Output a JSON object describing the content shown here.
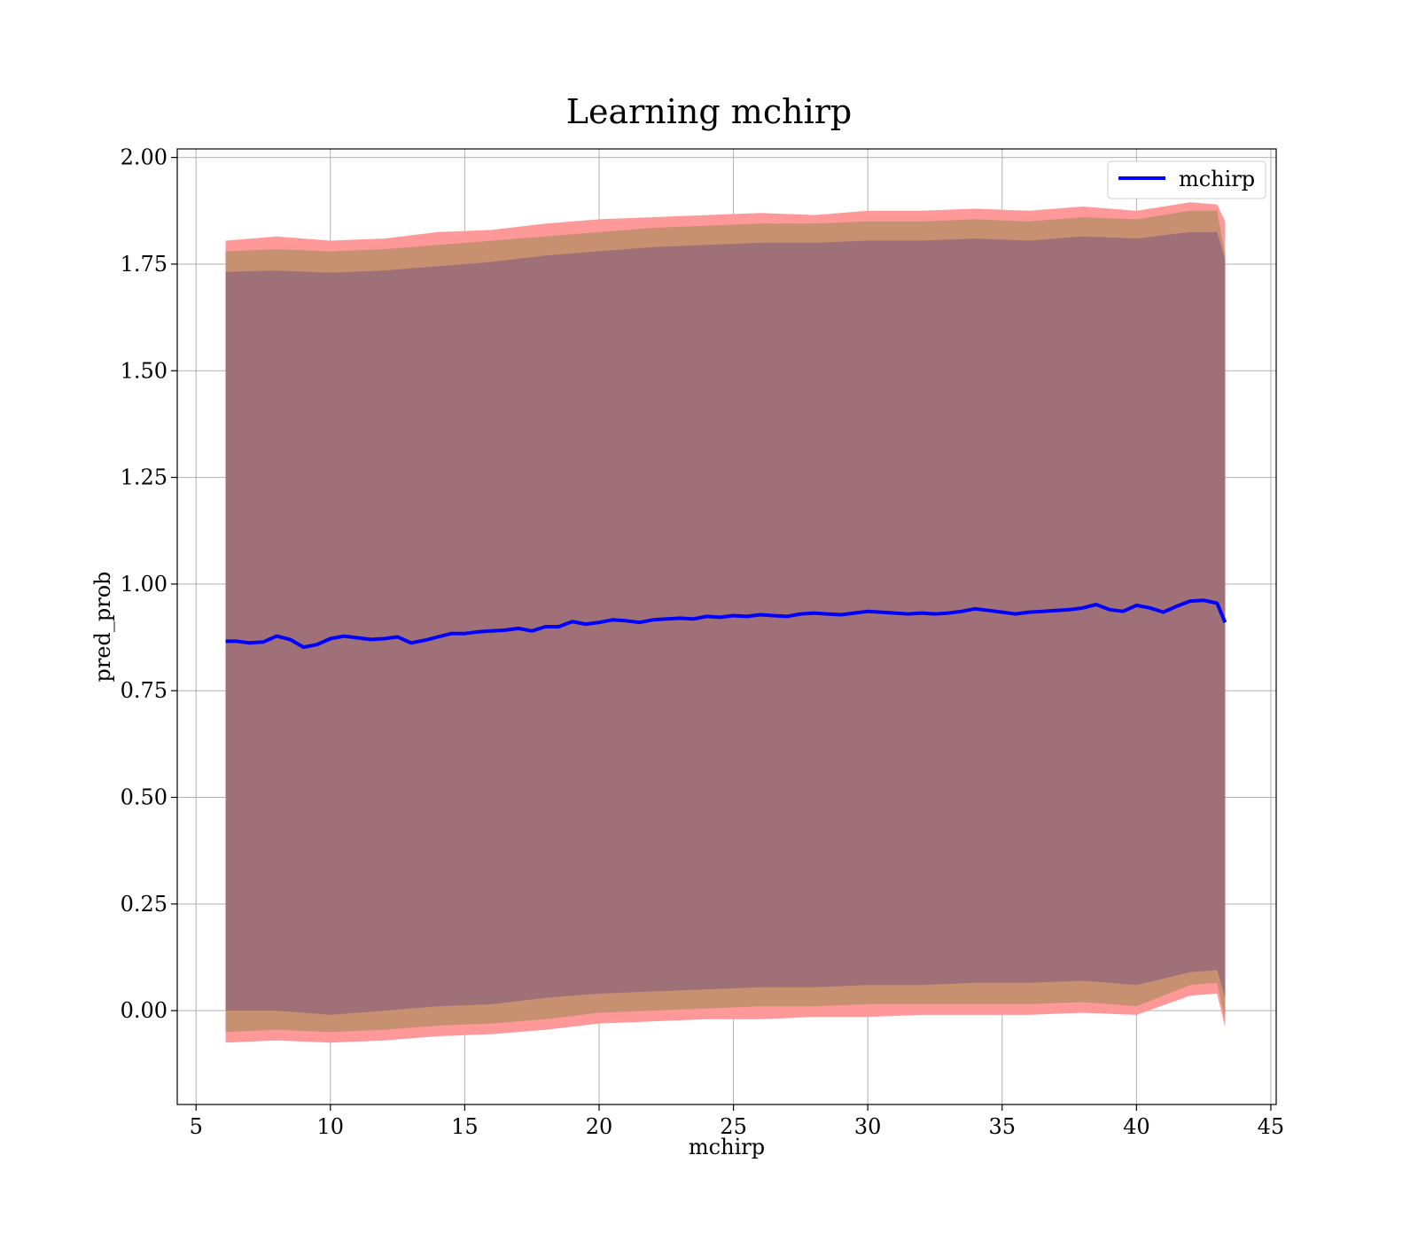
{
  "chart_data": {
    "type": "line",
    "title": "Learning mchirp",
    "xlabel": "mchirp",
    "ylabel": "pred_prob",
    "xlim": [
      4.3,
      45.2
    ],
    "ylim": [
      -0.22,
      2.02
    ],
    "grid": true,
    "legend_position": "top-right",
    "xticks": [
      5,
      10,
      15,
      20,
      25,
      30,
      35,
      40,
      45
    ],
    "xtick_labels": [
      "5",
      "10",
      "15",
      "20",
      "25",
      "30",
      "35",
      "40",
      "45"
    ],
    "yticks": [
      0.0,
      0.25,
      0.5,
      0.75,
      1.0,
      1.25,
      1.5,
      1.75,
      2.0
    ],
    "ytick_labels": [
      "0.00",
      "0.25",
      "0.50",
      "0.75",
      "1.00",
      "1.25",
      "1.50",
      "1.75",
      "2.00"
    ],
    "colors": {
      "line": "#0000ff",
      "band_outer": "#ff9999",
      "band_middle": "#c79070",
      "band_inner": "#a07078",
      "grid": "#b0b0b0"
    },
    "series": [
      {
        "name": "mchirp",
        "x": [
          6.1,
          6.5,
          7.0,
          7.5,
          8.0,
          8.5,
          9.0,
          9.5,
          10.0,
          10.5,
          11.0,
          11.5,
          12.0,
          12.5,
          13.0,
          13.5,
          14.0,
          14.5,
          15.0,
          15.5,
          16.0,
          16.5,
          17.0,
          17.5,
          18.0,
          18.5,
          19.0,
          19.5,
          20.0,
          20.5,
          21.0,
          21.5,
          22.0,
          22.5,
          23.0,
          23.5,
          24.0,
          24.5,
          25.0,
          25.5,
          26.0,
          26.5,
          27.0,
          27.5,
          28.0,
          28.5,
          29.0,
          29.5,
          30.0,
          30.5,
          31.0,
          31.5,
          32.0,
          32.5,
          33.0,
          33.5,
          34.0,
          34.5,
          35.0,
          35.5,
          36.0,
          36.5,
          37.0,
          37.5,
          38.0,
          38.5,
          39.0,
          39.5,
          40.0,
          40.5,
          41.0,
          41.5,
          42.0,
          42.5,
          43.0,
          43.3
        ],
        "y": [
          0.866,
          0.866,
          0.862,
          0.864,
          0.878,
          0.87,
          0.852,
          0.858,
          0.872,
          0.878,
          0.874,
          0.87,
          0.872,
          0.876,
          0.862,
          0.868,
          0.876,
          0.884,
          0.884,
          0.888,
          0.89,
          0.892,
          0.896,
          0.89,
          0.9,
          0.9,
          0.912,
          0.906,
          0.91,
          0.916,
          0.914,
          0.91,
          0.916,
          0.918,
          0.92,
          0.918,
          0.924,
          0.922,
          0.926,
          0.924,
          0.928,
          0.926,
          0.924,
          0.93,
          0.932,
          0.93,
          0.928,
          0.932,
          0.936,
          0.934,
          0.932,
          0.93,
          0.932,
          0.93,
          0.932,
          0.936,
          0.942,
          0.938,
          0.934,
          0.93,
          0.934,
          0.936,
          0.938,
          0.94,
          0.944,
          0.952,
          0.94,
          0.936,
          0.95,
          0.944,
          0.934,
          0.948,
          0.96,
          0.962,
          0.955,
          0.91
        ]
      }
    ],
    "bands": [
      {
        "x": [
          6.1,
          8.0,
          10.0,
          12.0,
          14.0,
          16.0,
          18.0,
          20.0,
          22.0,
          24.0,
          26.0,
          28.0,
          30.0,
          32.0,
          34.0,
          36.0,
          38.0,
          40.0,
          42.0,
          43.0,
          43.3
        ],
        "upper": [
          1.805,
          1.815,
          1.805,
          1.81,
          1.825,
          1.83,
          1.845,
          1.855,
          1.86,
          1.865,
          1.87,
          1.865,
          1.875,
          1.875,
          1.88,
          1.875,
          1.885,
          1.875,
          1.895,
          1.89,
          1.85
        ],
        "lower": [
          -0.075,
          -0.07,
          -0.075,
          -0.07,
          -0.06,
          -0.055,
          -0.045,
          -0.03,
          -0.025,
          -0.02,
          -0.02,
          -0.015,
          -0.015,
          -0.01,
          -0.01,
          -0.01,
          -0.005,
          -0.01,
          0.035,
          0.04,
          -0.04
        ]
      },
      {
        "x": [
          6.1,
          8.0,
          10.0,
          12.0,
          14.0,
          16.0,
          18.0,
          20.0,
          22.0,
          24.0,
          26.0,
          28.0,
          30.0,
          32.0,
          34.0,
          36.0,
          38.0,
          40.0,
          42.0,
          43.0,
          43.3
        ],
        "upper": [
          1.78,
          1.785,
          1.78,
          1.785,
          1.795,
          1.805,
          1.815,
          1.825,
          1.835,
          1.84,
          1.845,
          1.845,
          1.85,
          1.85,
          1.855,
          1.85,
          1.86,
          1.855,
          1.875,
          1.875,
          1.77
        ],
        "lower": [
          -0.05,
          -0.045,
          -0.05,
          -0.045,
          -0.035,
          -0.03,
          -0.02,
          -0.005,
          0.0,
          0.005,
          0.01,
          0.01,
          0.015,
          0.015,
          0.015,
          0.015,
          0.02,
          0.01,
          0.06,
          0.065,
          -0.02
        ]
      },
      {
        "x": [
          6.1,
          8.0,
          10.0,
          12.0,
          14.0,
          16.0,
          18.0,
          20.0,
          22.0,
          24.0,
          26.0,
          28.0,
          30.0,
          32.0,
          34.0,
          36.0,
          38.0,
          40.0,
          42.0,
          43.0,
          43.3
        ],
        "upper": [
          1.732,
          1.735,
          1.73,
          1.735,
          1.745,
          1.755,
          1.77,
          1.78,
          1.79,
          1.795,
          1.8,
          1.8,
          1.805,
          1.805,
          1.81,
          1.805,
          1.815,
          1.81,
          1.825,
          1.825,
          1.76
        ],
        "lower": [
          0.0,
          0.0,
          -0.01,
          0.0,
          0.01,
          0.015,
          0.03,
          0.04,
          0.045,
          0.05,
          0.055,
          0.055,
          0.06,
          0.06,
          0.065,
          0.065,
          0.07,
          0.06,
          0.09,
          0.095,
          0.03
        ]
      }
    ]
  }
}
